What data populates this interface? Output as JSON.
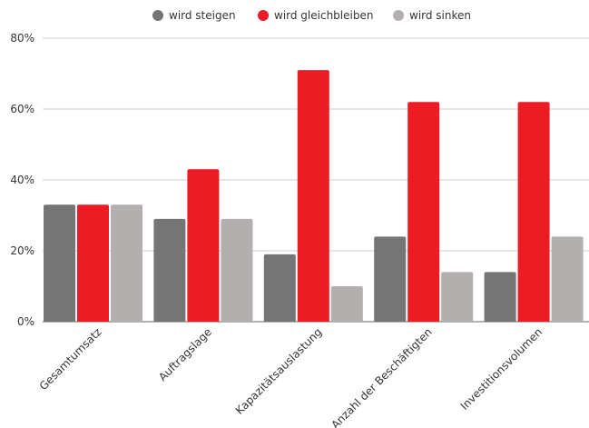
{
  "chart_data": {
    "type": "bar",
    "categories": [
      "Gesamtumsatz",
      "Auftragslage",
      "Kapazitätsauslastung",
      "Anzahl der Beschäftigten",
      "Investitionsvolumen"
    ],
    "series": [
      {
        "name": "wird steigen",
        "values": [
          33,
          29,
          19,
          24,
          14
        ],
        "color": "#757575"
      },
      {
        "name": "wird gleichbleiben",
        "values": [
          33,
          43,
          71,
          62,
          62
        ],
        "color": "#ed1b24"
      },
      {
        "name": "wird sinken",
        "values": [
          33,
          29,
          10,
          14,
          24
        ],
        "color": "#b3afaf"
      }
    ],
    "ylim": [
      0,
      80
    ],
    "yticks": [
      0,
      20,
      40,
      60,
      80
    ],
    "ytick_labels": [
      "0%",
      "20%",
      "40%",
      "60%",
      "80%"
    ],
    "grid": true,
    "legend_position": "top-center",
    "title": "",
    "xlabel": "",
    "ylabel": ""
  }
}
